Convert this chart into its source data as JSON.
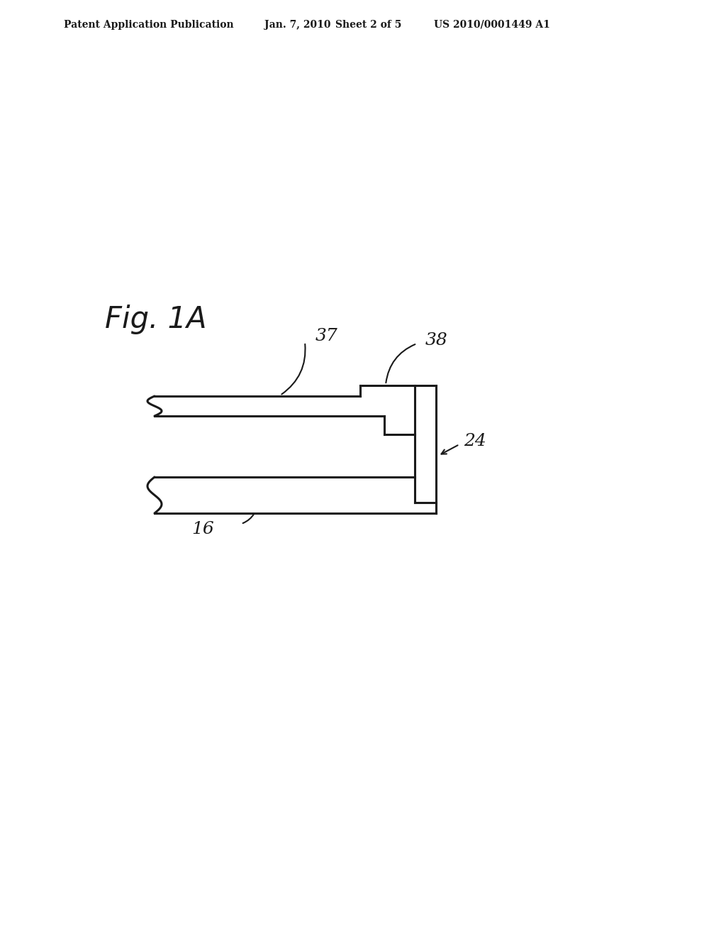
{
  "bg_color": "#ffffff",
  "line_color": "#1a1a1a",
  "header_text": "Patent Application Publication",
  "header_date": "Jan. 7, 2010",
  "header_sheet": "Sheet 2 of 5",
  "header_patent": "US 2010/0001449 A1",
  "fig_label": "Fig. 1A",
  "label_37": "37",
  "label_38": "38",
  "label_24": "24",
  "label_16": "16"
}
